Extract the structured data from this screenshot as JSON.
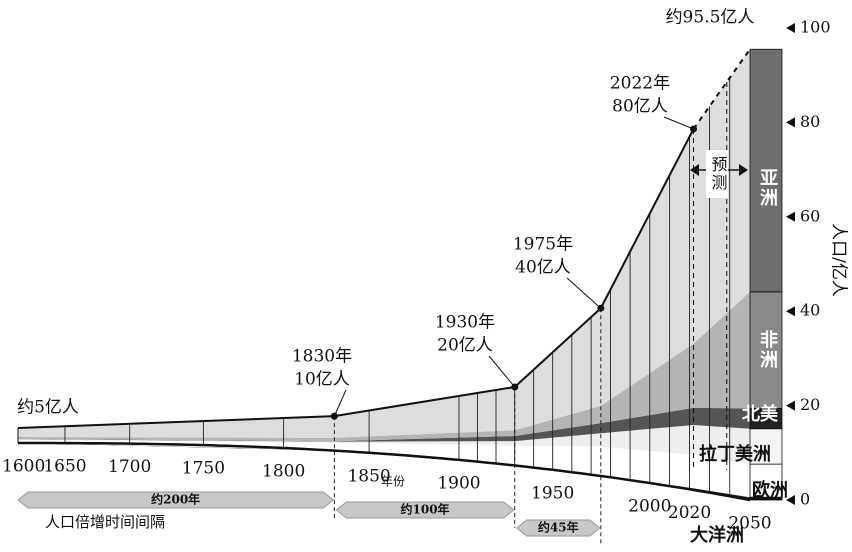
{
  "chart_data": {
    "type": "line",
    "x": [
      1600,
      1830,
      1930,
      1975,
      2022,
      2050
    ],
    "values": [
      5,
      10,
      20,
      40,
      80,
      95.5
    ],
    "annotations": [
      [
        "约5亿人"
      ],
      [
        "1830年",
        "10亿人"
      ],
      [
        "1930年",
        "20亿人"
      ],
      [
        "1975年",
        "40亿人"
      ],
      [
        "2022年",
        "80亿人"
      ],
      [
        "约95.5亿人"
      ]
    ],
    "series": [
      {
        "name": "大洋洲",
        "color": "#222222",
        "face_color": "#111111",
        "values": [
          0.1,
          0.1,
          0.1,
          0.2,
          0.4,
          0.6
        ]
      },
      {
        "name": "欧洲",
        "color": "#ffffff",
        "face_color": "#ffffff",
        "values": [
          1,
          2.2,
          5,
          6.8,
          7.4,
          7
        ]
      },
      {
        "name": "拉丁美洲",
        "color": "#eeeeee",
        "face_color": "#f4f4f4",
        "values": [
          0.2,
          0.3,
          1.1,
          3.2,
          6.6,
          7.5
        ]
      },
      {
        "name": "北美",
        "color": "#555555",
        "face_color": "#222222",
        "values": [
          0.1,
          0.1,
          1.3,
          2.4,
          3.8,
          4.3
        ]
      },
      {
        "name": "非洲",
        "color": "#b4b4b4",
        "face_color": "#8a8a8a",
        "values": [
          0.6,
          1,
          1.5,
          4.1,
          14.2,
          24.7
        ]
      },
      {
        "name": "亚洲",
        "color": "#dddddd",
        "face_color": "#6e6e6e",
        "values": [
          3,
          6.3,
          11,
          23.3,
          47.6,
          51.4
        ]
      }
    ],
    "xlim": [
      1600,
      2050
    ],
    "xticks": [
      1600,
      1650,
      1700,
      1750,
      1800,
      1850,
      1900,
      1950,
      2000,
      2020,
      2050
    ],
    "xlabel": "年份",
    "ylim": [
      0,
      100
    ],
    "yticks": [
      0,
      20,
      40,
      60,
      80,
      100
    ],
    "ylabel": "人口/亿人",
    "forecast_label": "预测",
    "doubling": {
      "label": "人口倍增时间间隔",
      "intervals": [
        "约200年",
        "约100年",
        "约45年"
      ]
    }
  }
}
